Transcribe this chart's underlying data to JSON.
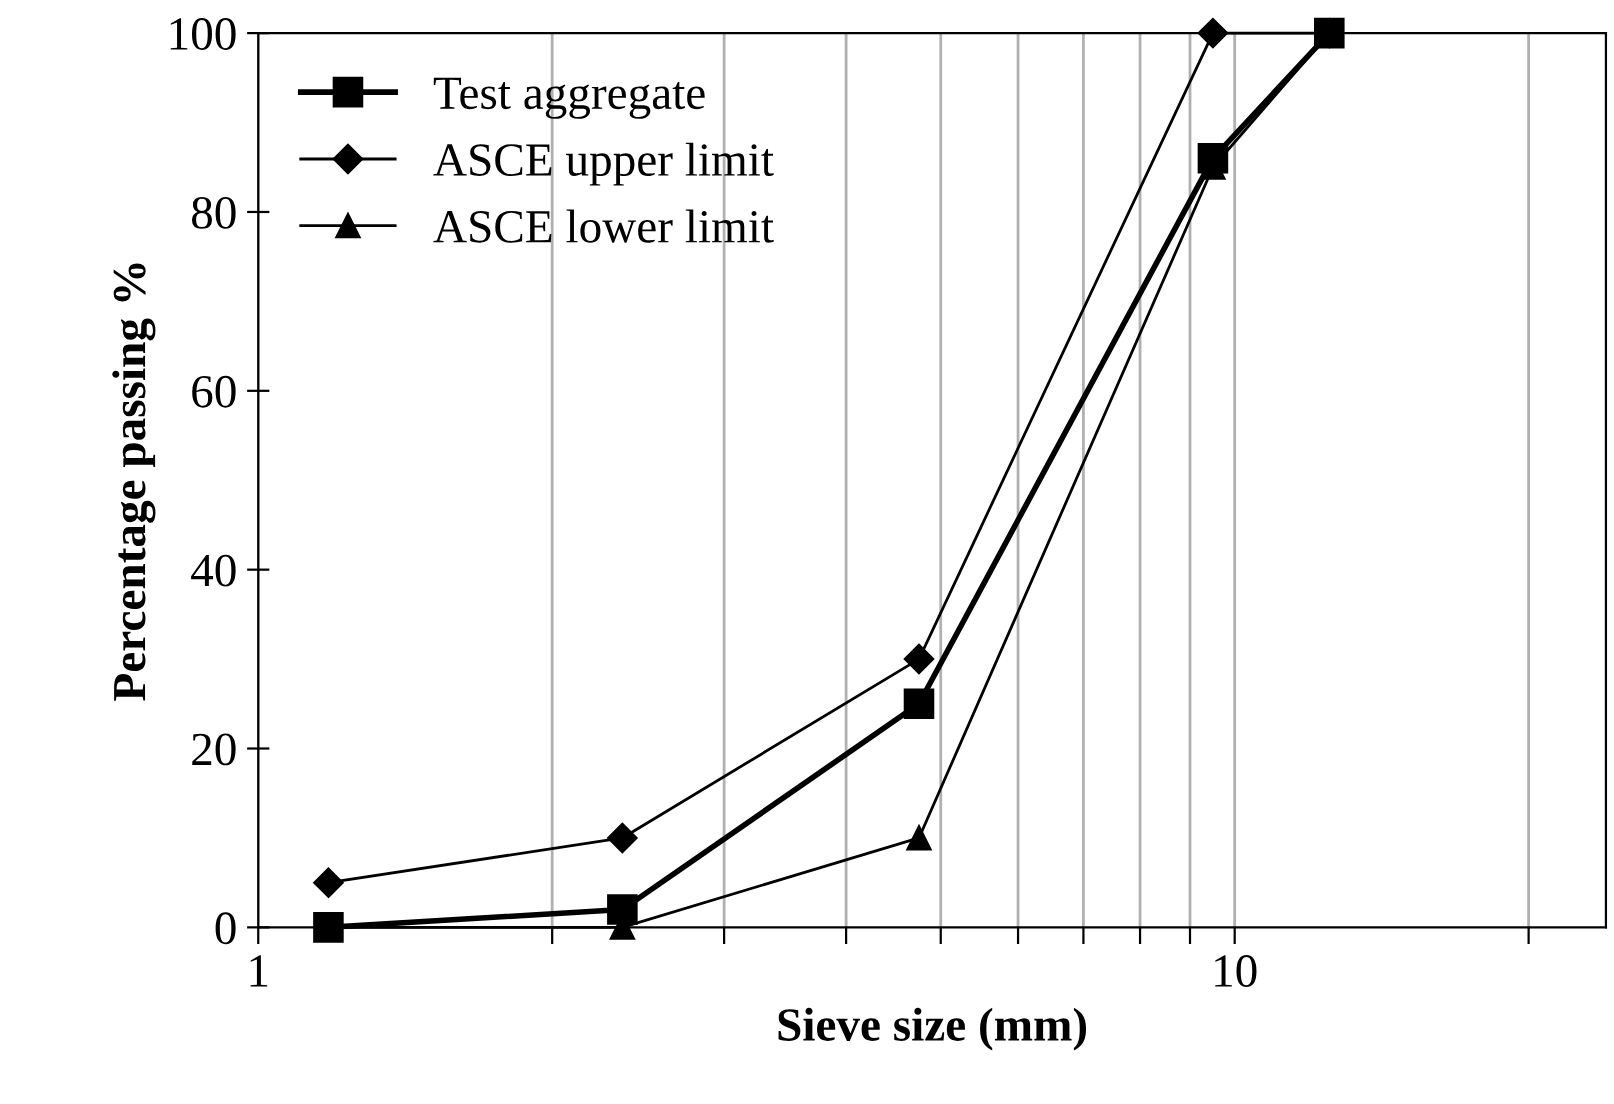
{
  "chart_data": {
    "type": "line",
    "xlabel": "Sieve size (mm)",
    "ylabel": "Percentage passing %",
    "log": "x",
    "xlim": [
      1,
      24
    ],
    "ylim": [
      0,
      100
    ],
    "xticks": [
      1,
      {
        "value": 2,
        "label": null
      },
      {
        "value": 3,
        "label": null
      },
      {
        "value": 4,
        "label": null
      },
      {
        "value": 5,
        "label": null
      },
      {
        "value": 6,
        "label": null
      },
      {
        "value": 7,
        "label": null
      },
      {
        "value": 8,
        "label": null
      },
      {
        "value": 9,
        "label": null
      },
      10,
      {
        "value": 20,
        "label": null
      }
    ],
    "yticks": [
      0,
      20,
      40,
      60,
      80,
      100
    ],
    "grid": "x",
    "legend": "top left",
    "x": [
      1.18,
      2.36,
      4.75,
      9.5,
      12.5
    ],
    "series": [
      {
        "name": "Test aggregate",
        "color": "#000000",
        "marker": "square",
        "values": [
          0,
          2,
          25,
          86,
          100
        ]
      },
      {
        "name": "ASCE upper limit",
        "color": "#000000",
        "marker": "diamond",
        "values": [
          5,
          10,
          30,
          100,
          100
        ]
      },
      {
        "name": "ASCE lower limit",
        "color": "#000000",
        "marker": "triangle",
        "values": [
          0,
          0,
          10,
          85,
          100
        ]
      }
    ]
  }
}
